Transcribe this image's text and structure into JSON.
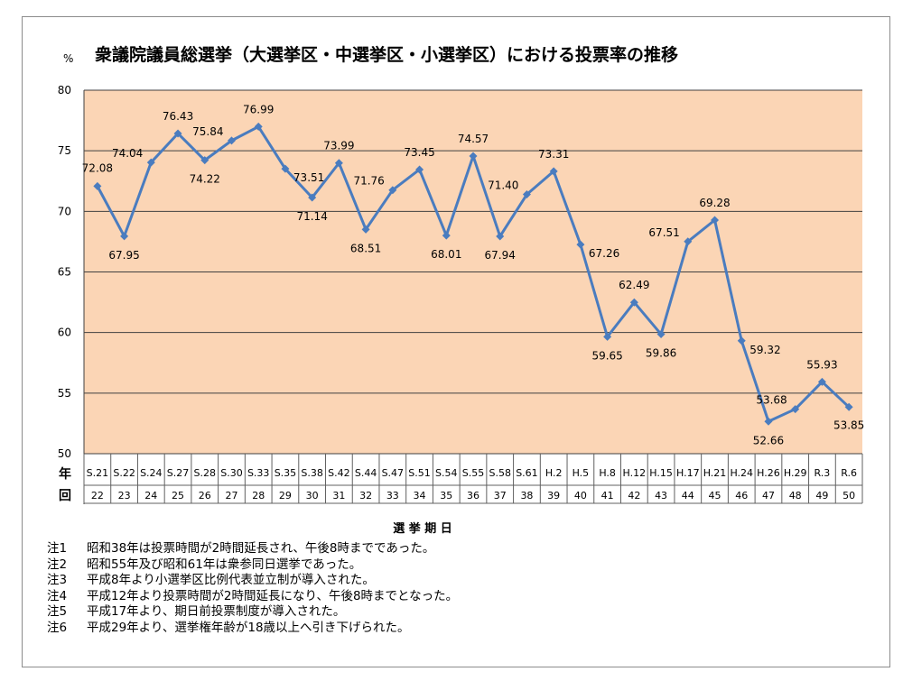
{
  "chart_data": {
    "type": "line",
    "title": "衆議院議員総選挙（大選挙区・中選挙区・小選挙区）における投票率の推移",
    "ylabel": "%",
    "xlabel": "選 挙 期 日",
    "ylim": [
      50,
      80
    ],
    "yticks": [
      50,
      55,
      60,
      65,
      70,
      75,
      80
    ],
    "grid": true,
    "row_headers": [
      "年",
      "回"
    ],
    "categories": [
      "S.21",
      "S.22",
      "S.24",
      "S.27",
      "S.28",
      "S.30",
      "S.33",
      "S.35",
      "S.38",
      "S.42",
      "S.44",
      "S.47",
      "S.51",
      "S.54",
      "S.55",
      "S.58",
      "S.61",
      "H.2",
      "H.5",
      "H.8",
      "H.12",
      "H.15",
      "H.17",
      "H.21",
      "H.24",
      "H.26",
      "H.29",
      "R.3",
      "R.6"
    ],
    "sessions": [
      "22",
      "23",
      "24",
      "25",
      "26",
      "27",
      "28",
      "29",
      "30",
      "31",
      "32",
      "33",
      "34",
      "35",
      "36",
      "37",
      "38",
      "39",
      "40",
      "41",
      "42",
      "43",
      "44",
      "45",
      "46",
      "47",
      "48",
      "49",
      "50"
    ],
    "values": [
      72.08,
      67.95,
      74.04,
      76.43,
      74.22,
      75.84,
      76.99,
      73.51,
      71.14,
      73.99,
      68.51,
      71.76,
      73.45,
      68.01,
      74.57,
      67.94,
      71.4,
      73.31,
      67.26,
      59.65,
      62.49,
      59.86,
      67.51,
      69.28,
      59.32,
      52.66,
      53.68,
      55.93,
      53.85
    ],
    "value_labels": [
      "72.08",
      "67.95",
      "74.04",
      "76.43",
      "74.22",
      "75.84",
      "76.99",
      "73.51",
      "71.14",
      "73.99",
      "68.51",
      "71.76",
      "73.45",
      "68.01",
      "74.57",
      "67.94",
      "71.40",
      "73.31",
      "67.26",
      "59.65",
      "62.49",
      "59.86",
      "67.51",
      "69.28",
      "59.32",
      "52.66",
      "53.68",
      "55.93",
      "53.85"
    ],
    "colors": {
      "plot_bg": "#fbd5b5",
      "line": "#4a7cbf",
      "marker": "#4a7cbf",
      "grid": "#404040"
    }
  },
  "notes": [
    {
      "tag": "注1",
      "text": "昭和38年は投票時間が2時間延長され、午後8時までであった。"
    },
    {
      "tag": "注2",
      "text": "昭和55年及び昭和61年は衆参同日選挙であった。"
    },
    {
      "tag": "注3",
      "text": "平成8年より小選挙区比例代表並立制が導入された。"
    },
    {
      "tag": "注4",
      "text": "平成12年より投票時間が2時間延長になり、午後8時までとなった。"
    },
    {
      "tag": "注5",
      "text": "平成17年より、期日前投票制度が導入された。"
    },
    {
      "tag": "注6",
      "text": "平成29年より、選挙権年齢が18歳以上へ引き下げられた。"
    }
  ]
}
